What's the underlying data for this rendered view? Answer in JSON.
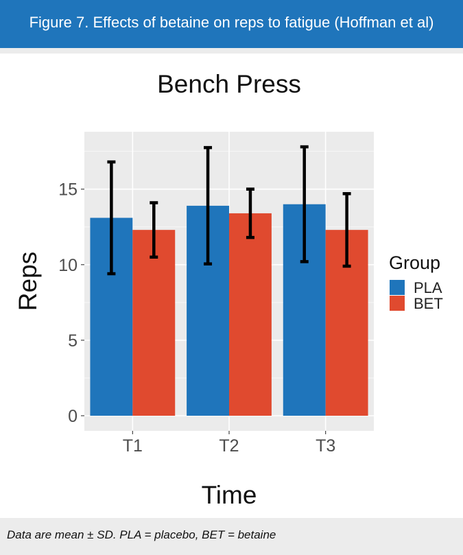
{
  "header": {
    "title": "Figure 7. Effects of betaine on reps to fatigue (Hoffman et al)"
  },
  "footer": {
    "note": "Data are mean ± SD. PLA = placebo, BET = betaine"
  },
  "colors": {
    "header_bg": "#1f75bb",
    "pla": "#1f75bb",
    "bet": "#e04a2f",
    "panel_bg": "#ebebeb",
    "error_bar": "#000000"
  },
  "chart_data": {
    "type": "bar",
    "title": "Bench Press",
    "xlabel": "Time",
    "ylabel": "Reps",
    "categories": [
      "T1",
      "T2",
      "T3"
    ],
    "series": [
      {
        "name": "PLA",
        "values": [
          13.1,
          13.9,
          14.0
        ],
        "sd": [
          3.7,
          3.85,
          3.8
        ]
      },
      {
        "name": "BET",
        "values": [
          12.3,
          13.4,
          12.3
        ],
        "sd": [
          1.8,
          1.6,
          2.4
        ]
      }
    ],
    "ylim": [
      0,
      18.8
    ],
    "yticks": [
      0,
      5,
      10,
      15
    ],
    "legend": {
      "title": "Group",
      "position": "right"
    },
    "grid": true
  }
}
